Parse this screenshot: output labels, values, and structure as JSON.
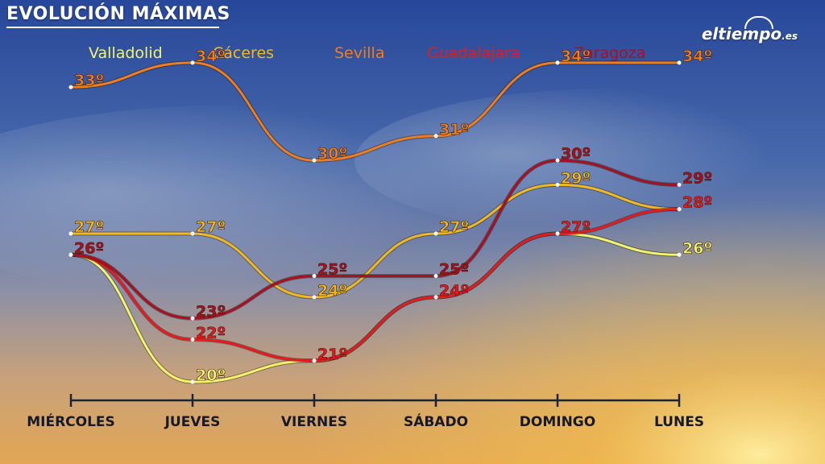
{
  "header": {
    "title": "EVOLUCIÓN MÁXIMAS",
    "logo_text": "eltiempo",
    "logo_suffix": ".es"
  },
  "chart_data": {
    "type": "line",
    "categories": [
      "MIÉRCOLES",
      "JUEVES",
      "VIERNES",
      "SÁBADO",
      "DOMINGO",
      "LUNES"
    ],
    "unit_suffix": "º",
    "series": [
      {
        "name": "Valladolid",
        "color": "#f4f46a",
        "values": [
          26,
          20,
          21,
          24,
          27,
          26
        ]
      },
      {
        "name": "Cáceres",
        "color": "#f2b81e",
        "values": [
          27,
          27,
          24,
          27,
          29,
          28
        ]
      },
      {
        "name": "Sevilla",
        "color": "#f07d1c",
        "values": [
          33,
          34,
          30,
          31,
          34,
          34
        ]
      },
      {
        "name": "Guadalajara",
        "color": "#e8191c",
        "values": [
          26,
          22,
          21,
          24,
          27,
          28
        ]
      },
      {
        "name": "Zaragoza",
        "color": "#a8101e",
        "values": [
          26,
          23,
          25,
          25,
          30,
          29
        ]
      }
    ],
    "point_labels": [
      {
        "series": "Sevilla",
        "index": 0,
        "text": "33º"
      },
      {
        "series": "Sevilla",
        "index": 1,
        "text": "34º"
      },
      {
        "series": "Sevilla",
        "index": 2,
        "text": "30º"
      },
      {
        "series": "Sevilla",
        "index": 3,
        "text": "31º"
      },
      {
        "series": "Sevilla",
        "index": 4,
        "text": "34º"
      },
      {
        "series": "Sevilla",
        "index": 5,
        "text": "34º"
      },
      {
        "series": "Cáceres",
        "index": 0,
        "text": "27º"
      },
      {
        "series": "Cáceres",
        "index": 1,
        "text": "27º"
      },
      {
        "series": "Cáceres",
        "index": 2,
        "text": "24º"
      },
      {
        "series": "Cáceres",
        "index": 3,
        "text": "27º"
      },
      {
        "series": "Cáceres",
        "index": 4,
        "text": "29º"
      },
      {
        "series": "Guadalajara",
        "index": 5,
        "text": "28º"
      },
      {
        "series": "Zaragoza",
        "index": 0,
        "text": "26º"
      },
      {
        "series": "Zaragoza",
        "index": 1,
        "text": "23º"
      },
      {
        "series": "Zaragoza",
        "index": 2,
        "text": "25º"
      },
      {
        "series": "Zaragoza",
        "index": 3,
        "text": "25º"
      },
      {
        "series": "Zaragoza",
        "index": 4,
        "text": "30º"
      },
      {
        "series": "Zaragoza",
        "index": 5,
        "text": "29º"
      },
      {
        "series": "Guadalajara",
        "index": 1,
        "text": "22º"
      },
      {
        "series": "Guadalajara",
        "index": 2,
        "text": "21º"
      },
      {
        "series": "Guadalajara",
        "index": 3,
        "text": "24º"
      },
      {
        "series": "Guadalajara",
        "index": 4,
        "text": "27º"
      },
      {
        "series": "Valladolid",
        "index": 1,
        "text": "20º"
      },
      {
        "series": "Valladolid",
        "index": 5,
        "text": "26º"
      }
    ],
    "legend_position": "top",
    "grid": false
  }
}
